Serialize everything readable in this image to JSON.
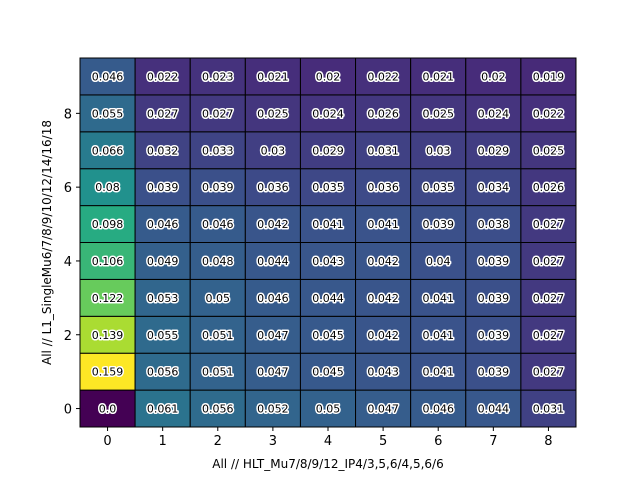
{
  "chart_data": {
    "type": "heatmap",
    "title": "",
    "xlabel": "All // HLT_Mu7/8/9/12_IP4/3,5,6/4,5,6/6",
    "ylabel": "All // L1_SingleMu6/7/8/9/10/12/14/16/18",
    "x_ticks": [
      "0",
      "1",
      "2",
      "3",
      "4",
      "5",
      "6",
      "7",
      "8"
    ],
    "y_ticks": [
      "0",
      "2",
      "4",
      "6",
      "8"
    ],
    "y_tick_values": [
      0,
      2,
      4,
      6,
      8
    ],
    "colormap": "viridis",
    "color_range": [
      0.0,
      0.159
    ],
    "grid": true,
    "rows_y": [
      0,
      1,
      2,
      3,
      4,
      5,
      6,
      7,
      8,
      9
    ],
    "values": [
      [
        0.0,
        0.061,
        0.056,
        0.052,
        0.05,
        0.047,
        0.046,
        0.044,
        0.031
      ],
      [
        0.159,
        0.056,
        0.051,
        0.047,
        0.045,
        0.043,
        0.041,
        0.039,
        0.027
      ],
      [
        0.139,
        0.055,
        0.051,
        0.047,
        0.045,
        0.042,
        0.041,
        0.039,
        0.027
      ],
      [
        0.122,
        0.053,
        0.05,
        0.046,
        0.044,
        0.042,
        0.041,
        0.039,
        0.027
      ],
      [
        0.106,
        0.049,
        0.048,
        0.044,
        0.043,
        0.042,
        0.04,
        0.039,
        0.027
      ],
      [
        0.098,
        0.046,
        0.046,
        0.042,
        0.041,
        0.041,
        0.039,
        0.038,
        0.027
      ],
      [
        0.08,
        0.039,
        0.039,
        0.036,
        0.035,
        0.036,
        0.035,
        0.034,
        0.026
      ],
      [
        0.066,
        0.032,
        0.033,
        0.03,
        0.029,
        0.031,
        0.03,
        0.029,
        0.025
      ],
      [
        0.055,
        0.027,
        0.027,
        0.025,
        0.024,
        0.026,
        0.025,
        0.024,
        0.022
      ],
      [
        0.046,
        0.022,
        0.023,
        0.021,
        0.02,
        0.022,
        0.021,
        0.02,
        0.019
      ]
    ]
  }
}
